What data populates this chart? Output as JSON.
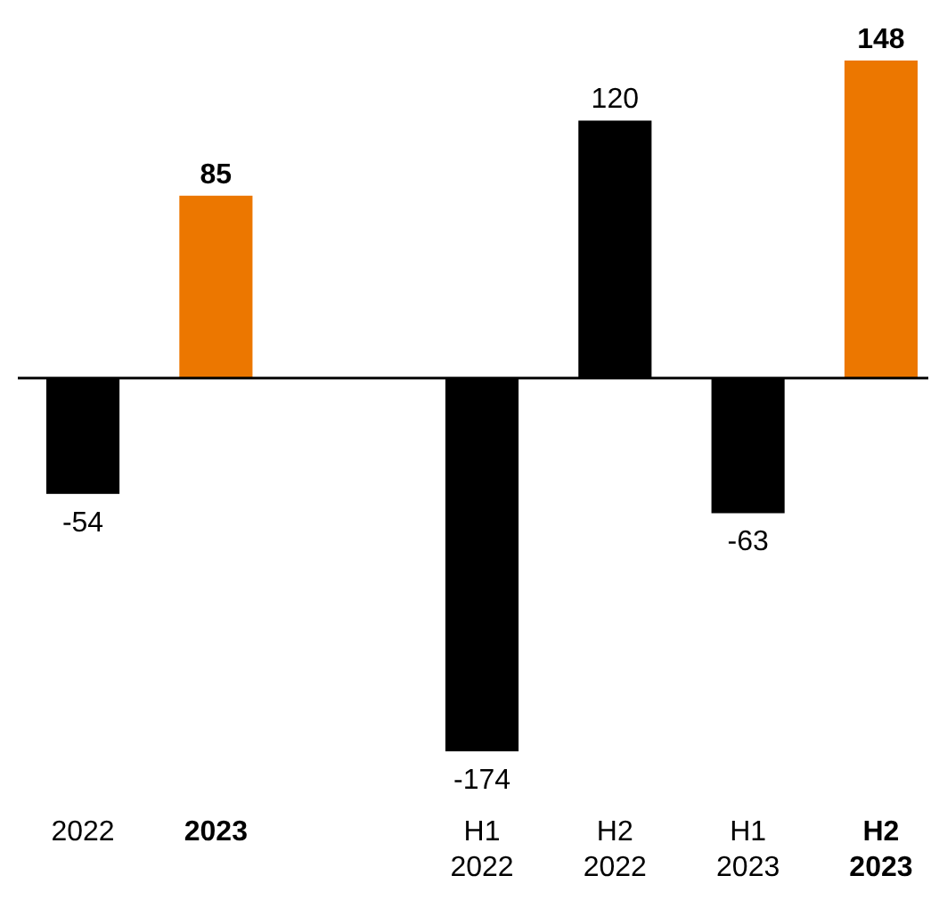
{
  "chart_data": {
    "type": "bar",
    "categories": [
      "2022",
      "2023",
      null,
      "H1 2022",
      "H2 2022",
      "H1 2023",
      "H2 2023"
    ],
    "values": [
      -54,
      85,
      null,
      -174,
      120,
      -63,
      148
    ],
    "colors": [
      "#000000",
      "#ec7700",
      null,
      "#000000",
      "#000000",
      "#000000",
      "#ec7700"
    ],
    "data_labels": true
  }
}
